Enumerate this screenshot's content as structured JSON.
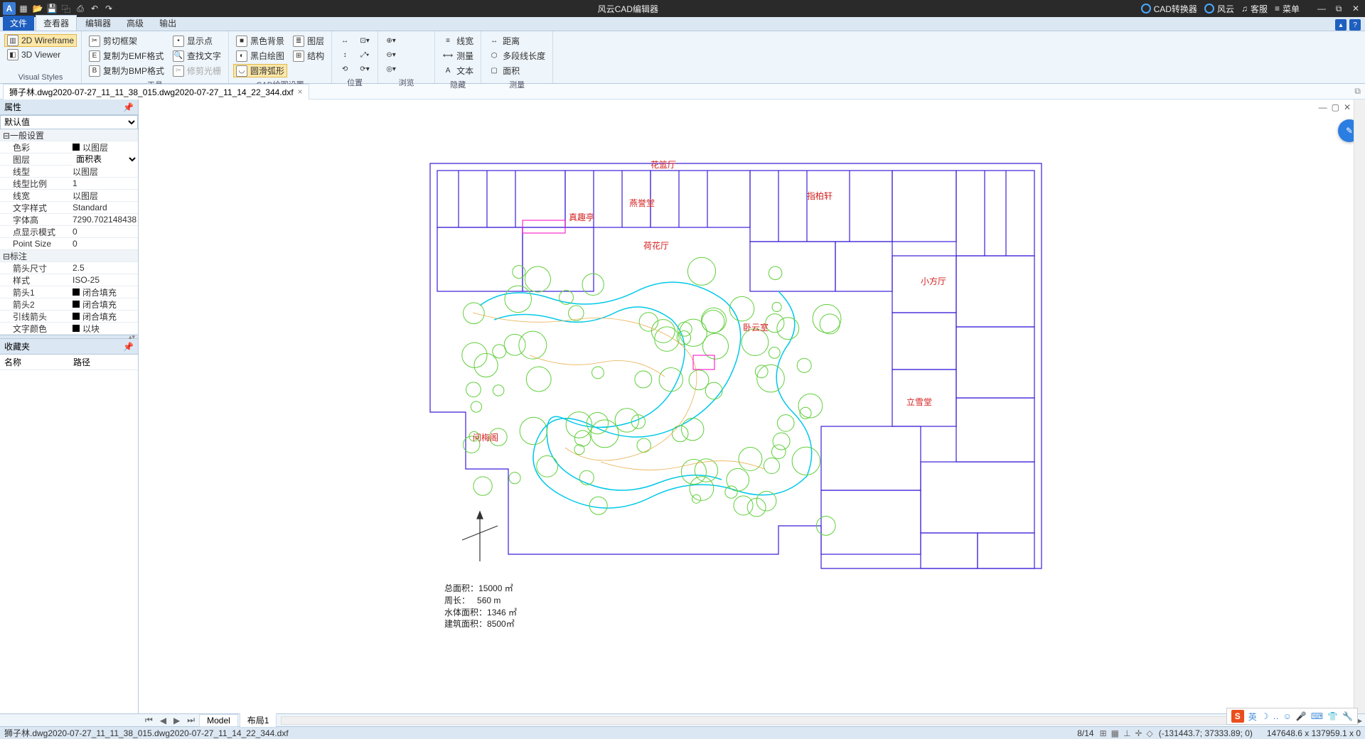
{
  "titlebar": {
    "title": "风云CAD编辑器",
    "links": {
      "converter": "CAD转换器",
      "brand": "风云",
      "service": "客服",
      "menu": "菜单"
    }
  },
  "menutabs": [
    "文件",
    "查看器",
    "编辑器",
    "高级",
    "输出"
  ],
  "menutabs_active": 1,
  "ribbon": {
    "visual": {
      "wireframe": "2D Wireframe",
      "viewer": "3D Viewer",
      "label": "Visual Styles"
    },
    "tools": {
      "clip": "剪切框架",
      "emf": "复制为EMF格式",
      "bmp": "复制为BMP格式",
      "showpt": "显示点",
      "findtext": "查找文字",
      "trim": "修剪光栅",
      "label": "工具"
    },
    "cadset": {
      "blackbg": "黑色背景",
      "bwdraw": "黑白绘图",
      "smootharc": "圆滑弧形",
      "layer": "图层",
      "struct": "结构",
      "label": "CAD绘图设置"
    },
    "pos": {
      "label": "位置"
    },
    "browse": {
      "label": "浏览"
    },
    "hide": {
      "linew": "线宽",
      "measure": "测量",
      "text": "文本",
      "label": "隐藏"
    },
    "measure": {
      "dist": "距离",
      "polylen": "多段线长度",
      "area": "面积",
      "label": "测量"
    }
  },
  "doctab": {
    "name": "狮子林.dwg2020-07-27_11_11_38_015.dwg2020-07-27_11_14_22_344.dxf"
  },
  "panel": {
    "property_title": "属性",
    "default_select": "默认值",
    "favorites_title": "收藏夹",
    "fav_cols": {
      "name": "名称",
      "path": "路径"
    },
    "groups": {
      "general": "一般设置",
      "annotation": "标注"
    },
    "props": [
      {
        "k": "色彩",
        "v": "以图层",
        "swatch": true
      },
      {
        "k": "图层",
        "v": "面积表",
        "dropdown": true
      },
      {
        "k": "线型",
        "v": "以图层"
      },
      {
        "k": "线型比例",
        "v": "1"
      },
      {
        "k": "线宽",
        "v": "以图层"
      },
      {
        "k": "文字样式",
        "v": "Standard"
      },
      {
        "k": "字体高",
        "v": "7290.702148438"
      },
      {
        "k": "点显示模式",
        "v": "0"
      },
      {
        "k": "Point Size",
        "v": "0"
      }
    ],
    "annot": [
      {
        "k": "箭头尺寸",
        "v": "2.5"
      },
      {
        "k": "样式",
        "v": "ISO-25"
      },
      {
        "k": "箭头1",
        "v": "闭合填充",
        "swatch": true
      },
      {
        "k": "箭头2",
        "v": "闭合填充",
        "swatch": true
      },
      {
        "k": "引线箭头",
        "v": "闭合填充",
        "swatch": true
      },
      {
        "k": "文字颜色",
        "v": "以块",
        "swatch": true
      }
    ]
  },
  "drawing_stats": {
    "total_area_label": "总面积：",
    "total_area": "15000 ㎡",
    "perimeter_label": "周长：",
    "perimeter": "560 m",
    "water_area_label": "水体面积：",
    "water_area": "1346 ㎡",
    "building_area_label": "建筑面积：",
    "building_area": "8500㎡"
  },
  "drawing_style": {
    "building_stroke": "#3a1fd8",
    "water_stroke": "#00c8e8",
    "vegetation_stroke": "#5fcf3a",
    "accent_stroke": "#ff00c0",
    "label_color": "#d42020",
    "path_stroke": "#e8b050",
    "compass_stroke": "#333333",
    "background": "#ffffff"
  },
  "drawing_labels": [
    "花篮厅",
    "燕誉堂",
    "指柏轩",
    "荷花厅",
    "小方厅",
    "真趣亭",
    "问梅阁",
    "立雪堂",
    "卧云室"
  ],
  "bottomtabs": {
    "model": "Model",
    "layout": "布局1"
  },
  "statusbar": {
    "filename": "狮子林.dwg2020-07-27_11_11_38_015.dwg2020-07-27_11_14_22_344.dxf",
    "pages": "8/14",
    "coords": "(-131443.7; 37333.89; 0)",
    "zoom": "147648.6 x 137959.1 x 0"
  }
}
